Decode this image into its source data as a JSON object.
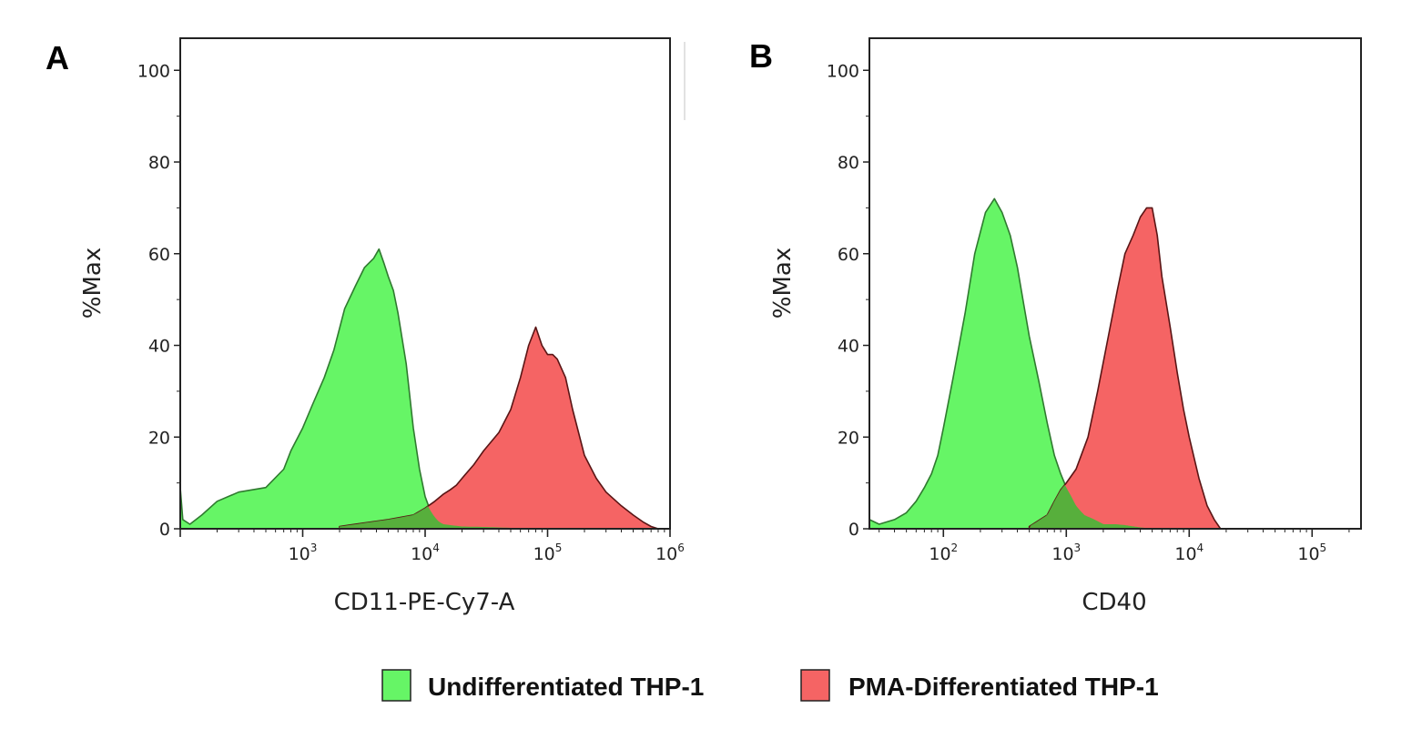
{
  "colors": {
    "undifferentiated_fill": "#66f566",
    "undifferentiated_stroke": "#2f7a2f",
    "pma_fill": "#f56464",
    "pma_stroke": "#5a1515",
    "overlap_fill": "#4eb33a",
    "axis": "#222222"
  },
  "legend": [
    {
      "label": "Undifferentiated THP-1",
      "color": "#66f566"
    },
    {
      "label": "PMA-Differentiated THP-1",
      "color": "#f56464"
    }
  ],
  "chart_data": [
    {
      "type": "area",
      "panel_label": "A",
      "title": "",
      "xlabel": "CD11-PE-Cy7-A",
      "ylabel": "%Max",
      "x_scale": "log",
      "xlim": [
        100,
        1000000
      ],
      "ylim": [
        0,
        107
      ],
      "y_ticks": [
        0,
        20,
        40,
        60,
        80,
        100
      ],
      "x_ticks": [
        {
          "value": 1000,
          "base": "10",
          "exp": "3"
        },
        {
          "value": 10000,
          "base": "10",
          "exp": "4"
        },
        {
          "value": 100000,
          "base": "10",
          "exp": "5"
        },
        {
          "value": 1000000,
          "base": "10",
          "exp": "6"
        }
      ],
      "series": [
        {
          "name": "Undifferentiated THP-1",
          "x": [
            100,
            105,
            120,
            150,
            200,
            300,
            500,
            700,
            800,
            1000,
            1200,
            1500,
            1800,
            2200,
            2700,
            3200,
            3800,
            4200,
            4600,
            5000,
            5500,
            6000,
            7000,
            8000,
            9000,
            10000,
            11000,
            12000,
            13000,
            14000,
            16000,
            20000,
            30000,
            50000,
            100000
          ],
          "y": [
            9,
            2,
            1,
            3,
            6,
            8,
            9,
            13,
            17,
            22,
            27,
            33,
            39,
            48,
            53,
            57,
            59,
            61,
            58,
            55,
            52,
            47,
            36,
            22,
            13,
            7,
            4,
            2.5,
            1.5,
            1,
            0.8,
            0.5,
            0.4,
            0.2,
            0
          ]
        },
        {
          "name": "PMA-Differentiated THP-1",
          "x": [
            2000,
            5000,
            8000,
            10000,
            12000,
            14000,
            16000,
            18000,
            20000,
            25000,
            30000,
            40000,
            50000,
            60000,
            70000,
            80000,
            90000,
            100000,
            110000,
            120000,
            140000,
            160000,
            200000,
            250000,
            300000,
            400000,
            500000,
            600000,
            700000,
            800000
          ],
          "y": [
            0.5,
            2,
            3,
            4.5,
            6,
            7.5,
            8.5,
            9.5,
            11,
            14,
            17,
            21,
            26,
            33,
            40,
            44,
            40,
            38,
            38,
            37,
            33,
            26,
            16,
            11,
            8,
            5,
            3,
            1.5,
            0.5,
            0
          ]
        }
      ]
    },
    {
      "type": "area",
      "panel_label": "B",
      "title": "",
      "xlabel": "CD40",
      "ylabel": "%Max",
      "x_scale": "log",
      "xlim": [
        25,
        250000
      ],
      "ylim": [
        0,
        107
      ],
      "y_ticks": [
        0,
        20,
        40,
        60,
        80,
        100
      ],
      "x_ticks": [
        {
          "value": 100,
          "base": "10",
          "exp": "2"
        },
        {
          "value": 1000,
          "base": "10",
          "exp": "3"
        },
        {
          "value": 10000,
          "base": "10",
          "exp": "4"
        },
        {
          "value": 100000,
          "base": "10",
          "exp": "5"
        }
      ],
      "series": [
        {
          "name": "Undifferentiated THP-1",
          "x": [
            25,
            30,
            40,
            50,
            60,
            70,
            80,
            90,
            100,
            120,
            150,
            180,
            220,
            260,
            300,
            350,
            400,
            450,
            500,
            600,
            700,
            800,
            900,
            1000,
            1100,
            1200,
            1400,
            1700,
            2000,
            2500,
            3000,
            4000,
            5000
          ],
          "y": [
            2,
            1,
            2,
            3.5,
            6,
            9,
            12,
            16,
            22,
            33,
            47,
            60,
            69,
            72,
            69,
            64,
            57,
            49,
            42,
            32,
            23,
            16,
            12,
            9,
            7,
            5,
            3,
            2,
            1,
            1,
            0.8,
            0.3,
            0
          ]
        },
        {
          "name": "PMA-Differentiated THP-1",
          "x": [
            500,
            700,
            800,
            900,
            1000,
            1200,
            1500,
            1800,
            2200,
            2600,
            3000,
            3500,
            4000,
            4500,
            5000,
            5500,
            6000,
            7000,
            8000,
            9000,
            10000,
            12000,
            14000,
            16000,
            18000
          ],
          "y": [
            0.5,
            3,
            6,
            8.5,
            10,
            13,
            20,
            30,
            42,
            52,
            60,
            64,
            68,
            70,
            70,
            64,
            55,
            44,
            34,
            26,
            20,
            11,
            5,
            2,
            0
          ]
        }
      ]
    }
  ]
}
